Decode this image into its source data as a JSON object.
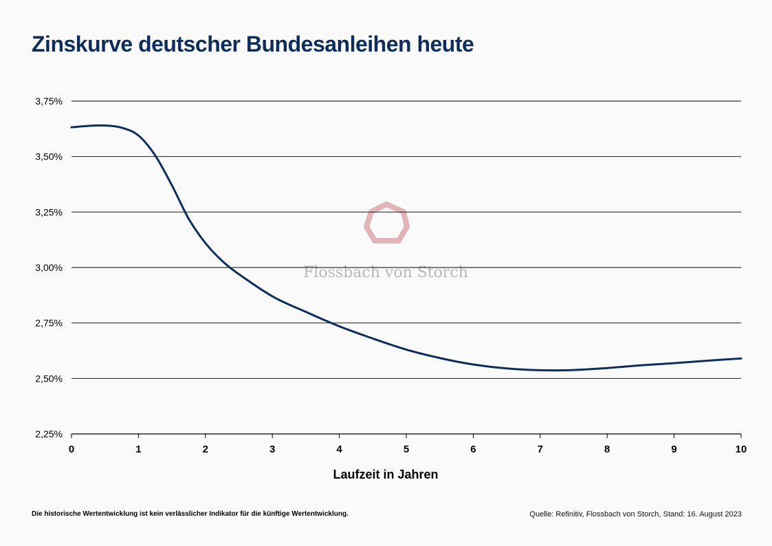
{
  "title": "Zinskurve deutscher Bundesanleihen heute",
  "footnote": "Die historische Wertentwicklung ist kein verlässlicher Indikator für die künftige Wertentwicklung.",
  "source": "Quelle: Refinitiv, Flossbach von Storch, Stand: 16. August 2023",
  "watermark": {
    "text": "Flossbach von Storch",
    "color": "#e3b4b7"
  },
  "colors": {
    "line": "#0d2e5c",
    "title": "#0d2e5c",
    "grid": "#000000"
  },
  "chart_data": {
    "type": "line",
    "title": "Zinskurve deutscher Bundesanleihen heute",
    "xlabel": "Laufzeit in Jahren",
    "ylabel": "",
    "xlim": [
      0,
      10
    ],
    "ylim": [
      2.25,
      3.75
    ],
    "x_ticks": [
      "0",
      "1",
      "2",
      "3",
      "4",
      "5",
      "6",
      "7",
      "8",
      "9",
      "10"
    ],
    "y_ticks": [
      "2,25%",
      "2,50%",
      "2,75%",
      "3,00%",
      "3,25%",
      "3,50%",
      "3,75%"
    ],
    "y_tick_values": [
      2.25,
      2.5,
      2.75,
      3.0,
      3.25,
      3.5,
      3.75
    ],
    "grid": "horizontal",
    "series": [
      {
        "x": [
          0,
          0.25,
          0.5,
          0.75,
          1.0,
          1.25,
          1.5,
          1.75,
          2.0,
          2.25,
          2.5,
          3.0,
          3.5,
          4.0,
          4.5,
          5.0,
          5.5,
          6.0,
          6.5,
          7.0,
          7.5,
          8.0,
          8.5,
          9.0,
          9.5,
          10.0
        ],
        "values": [
          3.632,
          3.638,
          3.64,
          3.63,
          3.595,
          3.505,
          3.37,
          3.22,
          3.11,
          3.03,
          2.97,
          2.87,
          2.8,
          2.735,
          2.68,
          2.63,
          2.592,
          2.563,
          2.545,
          2.537,
          2.538,
          2.547,
          2.559,
          2.569,
          2.58,
          2.59
        ]
      }
    ]
  }
}
